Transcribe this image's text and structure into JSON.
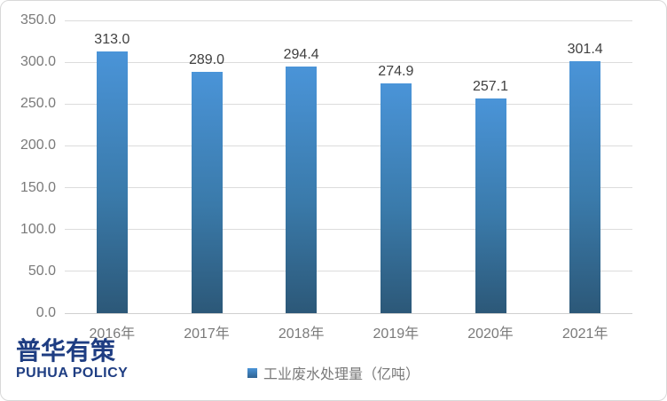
{
  "chart_data": {
    "type": "bar",
    "title": "",
    "categories": [
      "2016年",
      "2017年",
      "2018年",
      "2019年",
      "2020年",
      "2021年"
    ],
    "values": [
      313.0,
      289.0,
      294.4,
      274.9,
      257.1,
      301.4
    ],
    "value_labels": [
      "313.0",
      "289.0",
      "294.4",
      "274.9",
      "257.1",
      "301.4"
    ],
    "series": [
      {
        "name": "工业废水处理量（亿吨）",
        "values": [
          313.0,
          289.0,
          294.4,
          274.9,
          257.1,
          301.4
        ]
      }
    ],
    "xlabel": "",
    "ylabel": "",
    "ylim": [
      0,
      350
    ],
    "y_ticks": [
      "0.0",
      "50.0",
      "100.0",
      "150.0",
      "200.0",
      "250.0",
      "300.0",
      "350.0"
    ],
    "grid": true,
    "legend_position": "bottom",
    "colors": {
      "bar_gradient_top": "#4a94d8",
      "bar_gradient_bottom": "#2c5878",
      "gridline": "#dcdcdc",
      "axis_text": "#7a7a7a",
      "data_label_text": "#404040",
      "logo_navy": "#1e3d82"
    }
  },
  "legend": {
    "marker": "blue-gradient-square",
    "label": "工业废水处理量（亿吨）"
  },
  "logo": {
    "chinese": "普华有策",
    "english": "PUHUA POLICY"
  }
}
